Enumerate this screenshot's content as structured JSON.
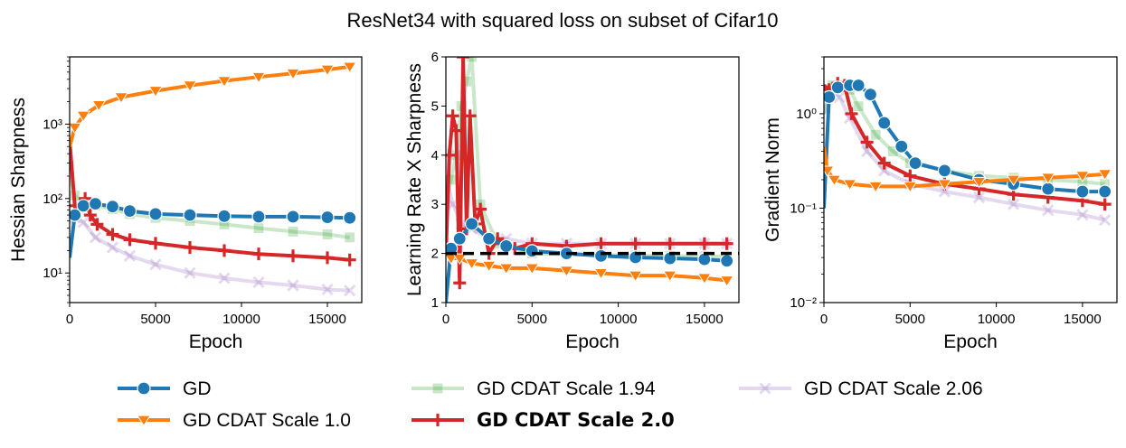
{
  "title": "ResNet34 with squared loss  on subset of Cifar10",
  "legend": [
    {
      "key": "gd",
      "label": "GD",
      "color": "#1f77b4",
      "marker": "circle",
      "opacity": 1,
      "bold": false
    },
    {
      "key": "cdat1",
      "label": "GD CDAT Scale 1.0",
      "color": "#ff7f0e",
      "marker": "triangle-down",
      "opacity": 1,
      "bold": false
    },
    {
      "key": "cdat194",
      "label": "GD CDAT Scale 1.94",
      "color": "#2ca02c",
      "marker": "square",
      "opacity": 0.25,
      "bold": false
    },
    {
      "key": "cdat2",
      "label": "GD CDAT Scale 2.0",
      "color": "#d62728",
      "marker": "plus",
      "opacity": 1,
      "bold": true
    },
    {
      "key": "cdat206",
      "label": "GD CDAT Scale 2.06",
      "color": "#9467bd",
      "marker": "x",
      "opacity": 0.25,
      "bold": false
    }
  ],
  "chart_data": [
    {
      "type": "line",
      "ylabel": "Hessian Sharpness",
      "xlabel": "Epoch",
      "yscale": "log",
      "xlim": [
        0,
        17000
      ],
      "ylim": [
        4,
        8000
      ],
      "xticks": [
        0,
        5000,
        10000,
        15000
      ],
      "xtick_labels": [
        "0",
        "5000",
        "10000",
        "15000"
      ],
      "yticks": [
        10,
        100,
        1000
      ],
      "ytick_labels": [
        "10¹",
        "10²",
        "10³"
      ],
      "series": [
        {
          "key": "cdat206",
          "x": [
            0,
            300,
            800,
            1500,
            2500,
            3500,
            5000,
            7000,
            9000,
            11000,
            13000,
            15000,
            16300
          ],
          "y": [
            60,
            55,
            48,
            30,
            22,
            17,
            13,
            10,
            8.5,
            7.5,
            6.8,
            6.0,
            5.8
          ]
        },
        {
          "key": "cdat194",
          "x": [
            0,
            300,
            800,
            1500,
            2500,
            3500,
            5000,
            7000,
            9000,
            11000,
            13000,
            15000,
            16300
          ],
          "y": [
            200,
            110,
            90,
            80,
            72,
            62,
            55,
            50,
            45,
            40,
            36,
            33,
            30
          ]
        },
        {
          "key": "cdat2",
          "x": [
            0,
            300,
            500,
            900,
            1200,
            1600,
            2500,
            3500,
            5000,
            7000,
            9000,
            11000,
            13000,
            15000,
            16300
          ],
          "y": [
            600,
            80,
            70,
            100,
            60,
            45,
            33,
            28,
            25,
            22,
            20,
            18,
            17,
            16,
            15
          ]
        },
        {
          "key": "gd",
          "x": [
            0,
            300,
            800,
            1500,
            2500,
            3500,
            5000,
            7000,
            9000,
            11000,
            13000,
            15000,
            16300
          ],
          "y": [
            16,
            60,
            80,
            85,
            78,
            68,
            62,
            60,
            58,
            57,
            57,
            56,
            55
          ]
        },
        {
          "key": "cdat1",
          "x": [
            0,
            300,
            800,
            1700,
            3000,
            5000,
            7000,
            9000,
            11000,
            13000,
            15000,
            16300
          ],
          "y": [
            500,
            900,
            1300,
            1800,
            2300,
            2800,
            3300,
            3800,
            4300,
            4800,
            5400,
            5900
          ]
        }
      ]
    },
    {
      "type": "line",
      "ylabel": "Learning Rate X Sharpness",
      "xlabel": "Epoch",
      "yscale": "linear",
      "xlim": [
        0,
        17000
      ],
      "ylim": [
        1,
        6
      ],
      "xticks": [
        0,
        5000,
        10000,
        15000
      ],
      "xtick_labels": [
        "0",
        "5000",
        "10000",
        "15000"
      ],
      "yticks": [
        1,
        2,
        3,
        4,
        5,
        6
      ],
      "ytick_labels": [
        "1",
        "2",
        "3",
        "4",
        "5",
        "6"
      ],
      "reference_line": {
        "y": 2,
        "style": "dashed",
        "color": "#000000"
      },
      "series": [
        {
          "key": "cdat206",
          "x": [
            0,
            400,
            900,
            1500,
            2500,
            3500,
            5000,
            7000,
            9000,
            11000,
            13000,
            15000,
            16300
          ],
          "y": [
            3.6,
            3.0,
            2.6,
            2.5,
            2.3,
            2.3,
            2.2,
            2.2,
            2.2,
            2.2,
            2.2,
            2.2,
            2.2
          ]
        },
        {
          "key": "cdat194",
          "x": [
            0,
            300,
            600,
            900,
            1200,
            1500,
            2000,
            3000,
            5000,
            7000,
            9000,
            11000,
            13000,
            15000,
            16300
          ],
          "y": [
            3.0,
            3.5,
            4.0,
            5.0,
            5.5,
            6.0,
            3.0,
            2.2,
            2.0,
            1.98,
            1.97,
            1.96,
            1.95,
            1.94,
            1.94
          ]
        },
        {
          "key": "cdat2",
          "x": [
            0,
            200,
            400,
            600,
            800,
            1000,
            1200,
            1400,
            1700,
            2000,
            2500,
            3000,
            4000,
            5000,
            7000,
            9000,
            11000,
            13000,
            15000,
            16300
          ],
          "y": [
            2.0,
            4.0,
            4.8,
            4.5,
            1.4,
            6.0,
            2.5,
            4.8,
            2.6,
            2.9,
            2.0,
            2.3,
            2.1,
            2.2,
            2.15,
            2.2,
            2.2,
            2.2,
            2.2,
            2.2
          ]
        },
        {
          "key": "gd",
          "x": [
            0,
            300,
            800,
            1500,
            2500,
            3500,
            5000,
            7000,
            9000,
            11000,
            13000,
            15000,
            16300
          ],
          "y": [
            1.0,
            2.1,
            2.3,
            2.6,
            2.3,
            2.15,
            2.05,
            2.0,
            1.95,
            1.92,
            1.9,
            1.88,
            1.85
          ]
        },
        {
          "key": "cdat1",
          "x": [
            0,
            300,
            800,
            1500,
            2500,
            3500,
            5000,
            7000,
            9000,
            11000,
            13000,
            15000,
            16300
          ],
          "y": [
            2.0,
            1.9,
            1.9,
            1.8,
            1.75,
            1.7,
            1.7,
            1.65,
            1.6,
            1.55,
            1.55,
            1.5,
            1.45
          ]
        }
      ]
    },
    {
      "type": "line",
      "ylabel": "Gradient Norm",
      "xlabel": "Epoch",
      "yscale": "log",
      "xlim": [
        0,
        17000
      ],
      "ylim": [
        0.01,
        4
      ],
      "xticks": [
        0,
        5000,
        10000,
        15000
      ],
      "xtick_labels": [
        "0",
        "5000",
        "10000",
        "15000"
      ],
      "yticks": [
        0.01,
        0.1,
        1
      ],
      "ytick_labels": [
        "10⁻²",
        "10⁻¹",
        "10⁰"
      ],
      "series": [
        {
          "key": "cdat206",
          "x": [
            0,
            400,
            900,
            1500,
            2500,
            3500,
            5000,
            7000,
            9000,
            11000,
            13000,
            15000,
            16300
          ],
          "y": [
            1.0,
            1.8,
            1.5,
            0.9,
            0.4,
            0.25,
            0.18,
            0.15,
            0.13,
            0.11,
            0.095,
            0.085,
            0.075
          ]
        },
        {
          "key": "cdat194",
          "x": [
            0,
            500,
            1000,
            1500,
            2000,
            3000,
            4000,
            5000,
            7000,
            9000,
            11000,
            13000,
            15000,
            16300
          ],
          "y": [
            1.0,
            2.0,
            2.0,
            1.8,
            1.2,
            0.6,
            0.4,
            0.3,
            0.25,
            0.22,
            0.21,
            0.2,
            0.19,
            0.18
          ]
        },
        {
          "key": "cdat2",
          "x": [
            0,
            300,
            800,
            1200,
            1600,
            2500,
            3500,
            5000,
            7000,
            9000,
            11000,
            13000,
            15000,
            16300
          ],
          "y": [
            2.0,
            1.8,
            2.1,
            2.0,
            1.0,
            0.5,
            0.3,
            0.22,
            0.18,
            0.16,
            0.14,
            0.13,
            0.12,
            0.11
          ]
        },
        {
          "key": "gd",
          "x": [
            0,
            300,
            800,
            1500,
            2000,
            2700,
            3500,
            4500,
            5300,
            7000,
            9000,
            11000,
            13000,
            15000,
            16300
          ],
          "y": [
            0.1,
            1.5,
            1.9,
            2.0,
            2.0,
            1.6,
            0.8,
            0.45,
            0.3,
            0.25,
            0.2,
            0.18,
            0.16,
            0.15,
            0.15
          ]
        },
        {
          "key": "cdat1",
          "x": [
            0,
            200,
            600,
            1500,
            3000,
            5000,
            7000,
            9000,
            11000,
            13000,
            15000,
            16300
          ],
          "y": [
            0.45,
            0.25,
            0.2,
            0.18,
            0.17,
            0.17,
            0.18,
            0.19,
            0.2,
            0.21,
            0.22,
            0.23
          ]
        }
      ]
    }
  ]
}
